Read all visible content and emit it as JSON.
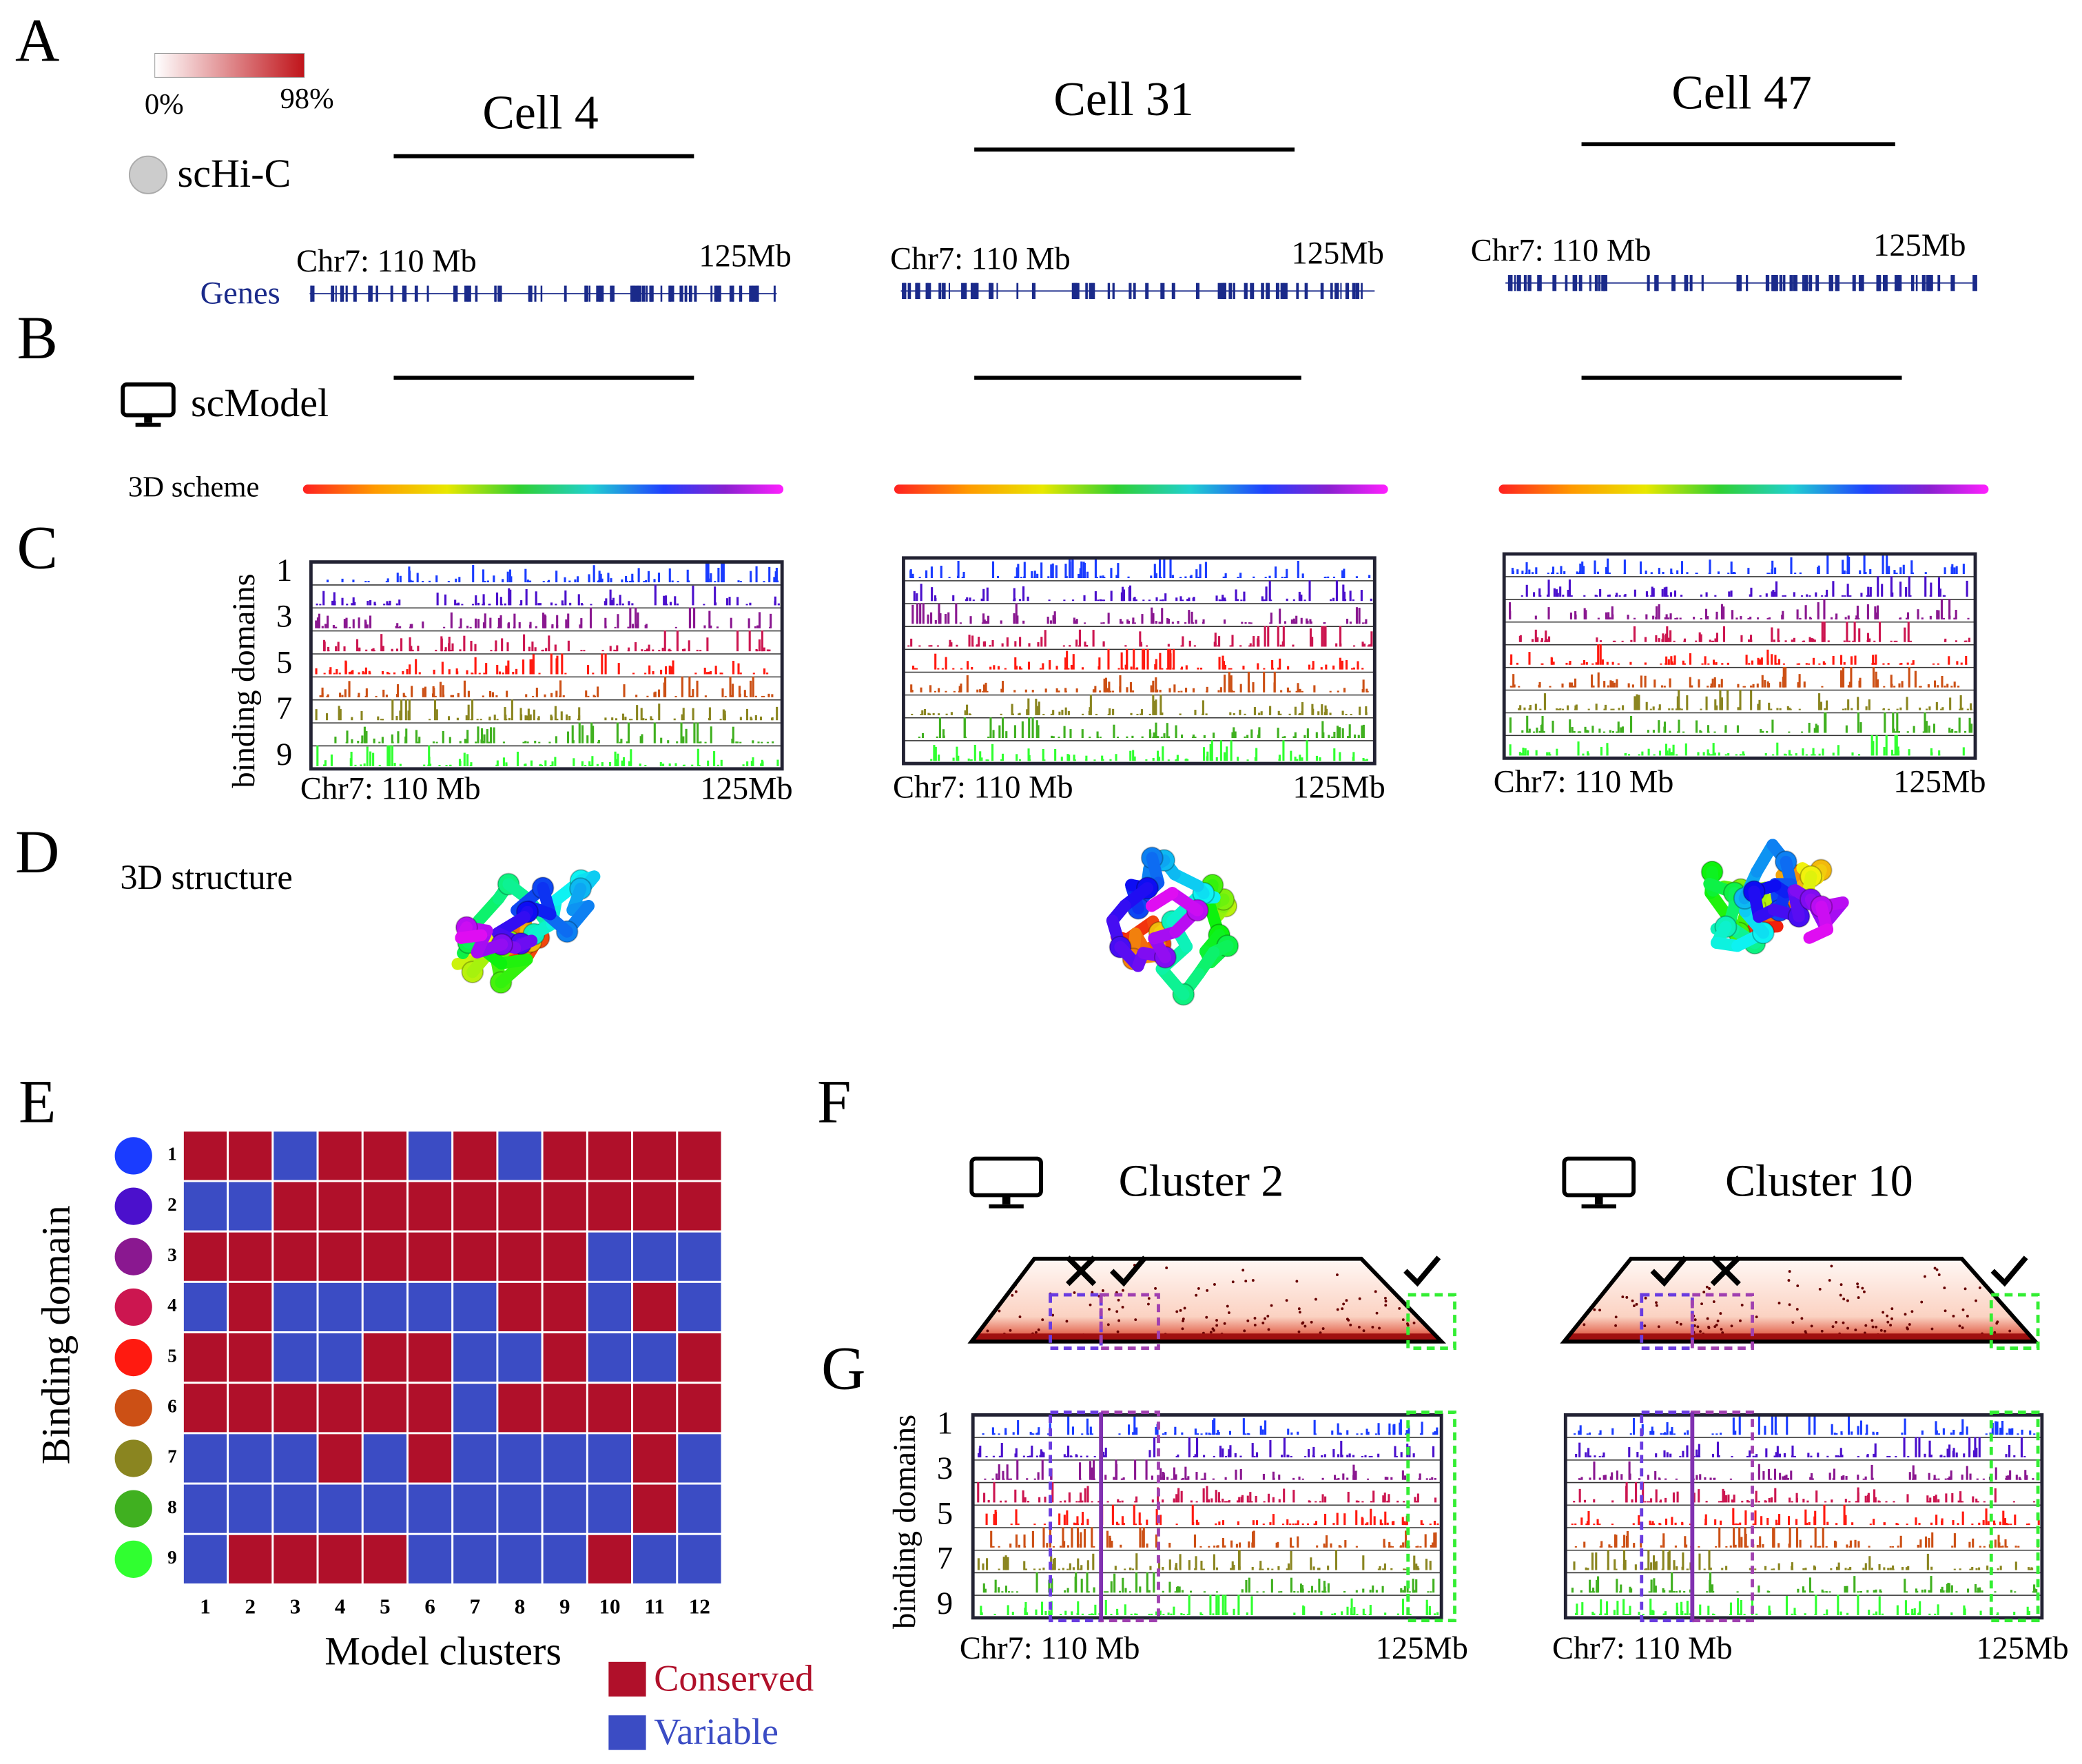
{
  "panel_labels": [
    "A",
    "B",
    "C",
    "D",
    "E",
    "F",
    "G"
  ],
  "colorbar": {
    "min_label": "0%",
    "max_label": "98%"
  },
  "cells": [
    {
      "title": "Cell 4"
    },
    {
      "title": "Cell 31"
    },
    {
      "title": "Cell 47"
    }
  ],
  "row_labels": {
    "schic": "scHi-C",
    "genes": "Genes",
    "scmodel": "scModel",
    "scheme": "3D scheme",
    "structure": "3D structure",
    "binding_domains": "binding domains"
  },
  "coord": {
    "start": "Chr7: 110 Mb",
    "end": "125Mb"
  },
  "track_ticks": [
    1,
    3,
    5,
    7,
    9
  ],
  "heatmap": {
    "ylabel": "Binding domain",
    "xlabel": "Model clusters",
    "rows": [
      1,
      2,
      3,
      4,
      5,
      6,
      7,
      8,
      9
    ],
    "columns": [
      1,
      2,
      3,
      4,
      5,
      6,
      7,
      8,
      9,
      10,
      11,
      12
    ],
    "domain_colors": [
      "#1a3cff",
      "#4b10cc",
      "#8a1890",
      "#cc1650",
      "#ff1a10",
      "#cc5015",
      "#8a8520",
      "#40b020",
      "#30ff30"
    ],
    "matrix": [
      [
        1,
        1,
        0,
        1,
        1,
        0,
        1,
        0,
        1,
        1,
        1,
        1
      ],
      [
        0,
        0,
        1,
        1,
        1,
        1,
        1,
        1,
        1,
        1,
        1,
        1
      ],
      [
        1,
        1,
        1,
        1,
        1,
        1,
        1,
        1,
        1,
        0,
        0,
        0
      ],
      [
        0,
        1,
        0,
        0,
        0,
        0,
        0,
        1,
        1,
        0,
        1,
        0
      ],
      [
        1,
        1,
        0,
        0,
        1,
        1,
        0,
        0,
        1,
        0,
        0,
        1
      ],
      [
        1,
        1,
        1,
        1,
        1,
        1,
        0,
        1,
        1,
        1,
        1,
        1
      ],
      [
        0,
        0,
        0,
        1,
        0,
        1,
        0,
        0,
        0,
        0,
        1,
        0
      ],
      [
        0,
        0,
        0,
        0,
        0,
        0,
        0,
        0,
        0,
        0,
        1,
        0
      ],
      [
        0,
        1,
        1,
        1,
        1,
        0,
        0,
        0,
        0,
        1,
        0,
        0
      ]
    ],
    "legend": [
      {
        "name": "Conserved",
        "color": "#b0102a",
        "value": 1
      },
      {
        "name": "Variable",
        "color": "#3b4cc4",
        "value": 0
      }
    ]
  },
  "clusters": [
    {
      "title": "Cluster 2"
    },
    {
      "title": "Cluster 10"
    }
  ]
}
